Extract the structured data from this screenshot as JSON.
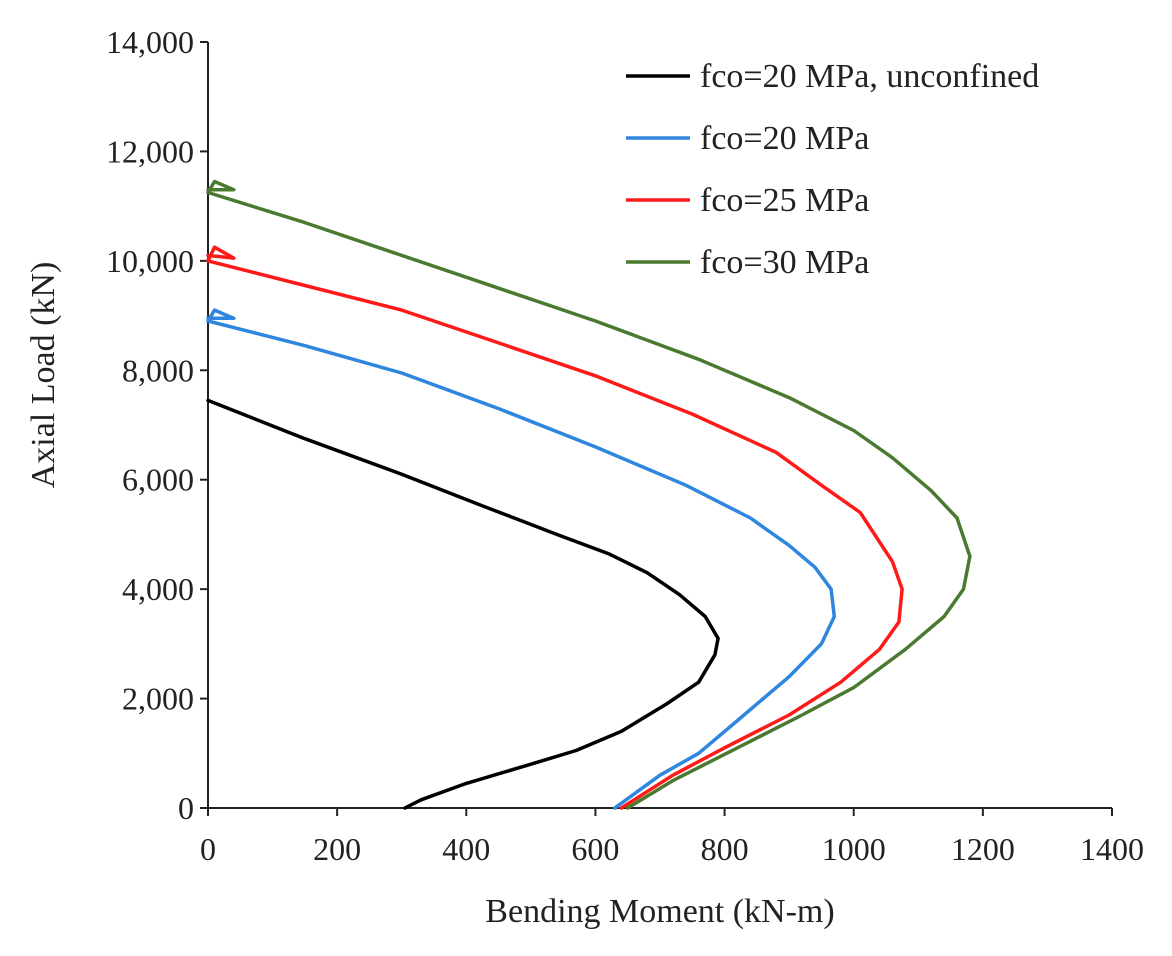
{
  "chart_data": {
    "type": "line",
    "title": "",
    "xlabel": "Bending Moment (kN-m)",
    "ylabel": "Axial Load (kN)",
    "xlim": [
      0,
      1400
    ],
    "ylim": [
      0,
      14000
    ],
    "x_ticks": [
      0,
      200,
      400,
      600,
      800,
      1000,
      1200,
      1400
    ],
    "y_ticks": [
      0,
      2000,
      4000,
      6000,
      8000,
      10000,
      12000,
      14000
    ],
    "x_tick_labels": [
      "0",
      "200",
      "400",
      "600",
      "800",
      "1000",
      "1200",
      "1400"
    ],
    "y_tick_labels": [
      "0",
      "2,000",
      "4,000",
      "6,000",
      "8,000",
      "10,000",
      "12,000",
      "14,000"
    ],
    "grid": false,
    "legend_position": "top-right",
    "series": [
      {
        "name": "fco=20 MPa, unconfined",
        "color": "#000000",
        "points": [
          [
            305,
            0
          ],
          [
            330,
            150
          ],
          [
            400,
            450
          ],
          [
            500,
            800
          ],
          [
            570,
            1050
          ],
          [
            640,
            1400
          ],
          [
            710,
            1900
          ],
          [
            760,
            2300
          ],
          [
            785,
            2800
          ],
          [
            790,
            3100
          ],
          [
            770,
            3500
          ],
          [
            730,
            3900
          ],
          [
            680,
            4300
          ],
          [
            620,
            4650
          ],
          [
            540,
            5000
          ],
          [
            430,
            5500
          ],
          [
            300,
            6100
          ],
          [
            150,
            6750
          ],
          [
            0,
            7450
          ]
        ]
      },
      {
        "name": "fco=20 MPa",
        "color": "#2e86de",
        "points": [
          [
            630,
            0
          ],
          [
            700,
            600
          ],
          [
            760,
            1000
          ],
          [
            820,
            1600
          ],
          [
            900,
            2400
          ],
          [
            950,
            3000
          ],
          [
            970,
            3500
          ],
          [
            965,
            4000
          ],
          [
            940,
            4400
          ],
          [
            900,
            4800
          ],
          [
            840,
            5300
          ],
          [
            740,
            5900
          ],
          [
            600,
            6600
          ],
          [
            450,
            7300
          ],
          [
            300,
            7950
          ],
          [
            150,
            8450
          ],
          [
            0,
            8900
          ],
          [
            10,
            9100
          ],
          [
            40,
            8950
          ],
          [
            0,
            8950
          ]
        ]
      },
      {
        "name": "fco=25 MPa",
        "color": "#ff1a1a",
        "points": [
          [
            640,
            0
          ],
          [
            720,
            600
          ],
          [
            800,
            1100
          ],
          [
            900,
            1700
          ],
          [
            980,
            2300
          ],
          [
            1040,
            2900
          ],
          [
            1070,
            3400
          ],
          [
            1075,
            4000
          ],
          [
            1060,
            4500
          ],
          [
            1010,
            5400
          ],
          [
            950,
            5900
          ],
          [
            880,
            6500
          ],
          [
            750,
            7200
          ],
          [
            600,
            7900
          ],
          [
            450,
            8500
          ],
          [
            300,
            9100
          ],
          [
            150,
            9550
          ],
          [
            0,
            10000
          ],
          [
            10,
            10250
          ],
          [
            40,
            10050
          ],
          [
            0,
            10100
          ]
        ]
      },
      {
        "name": "fco=30 MPa",
        "color": "#4a7a30",
        "points": [
          [
            650,
            0
          ],
          [
            720,
            500
          ],
          [
            820,
            1100
          ],
          [
            920,
            1700
          ],
          [
            1000,
            2200
          ],
          [
            1080,
            2900
          ],
          [
            1140,
            3500
          ],
          [
            1170,
            4000
          ],
          [
            1180,
            4600
          ],
          [
            1160,
            5300
          ],
          [
            1120,
            5800
          ],
          [
            1060,
            6400
          ],
          [
            1000,
            6900
          ],
          [
            900,
            7500
          ],
          [
            760,
            8200
          ],
          [
            600,
            8900
          ],
          [
            450,
            9500
          ],
          [
            300,
            10100
          ],
          [
            150,
            10700
          ],
          [
            0,
            11250
          ],
          [
            10,
            11450
          ],
          [
            40,
            11300
          ],
          [
            0,
            11300
          ]
        ]
      }
    ]
  }
}
